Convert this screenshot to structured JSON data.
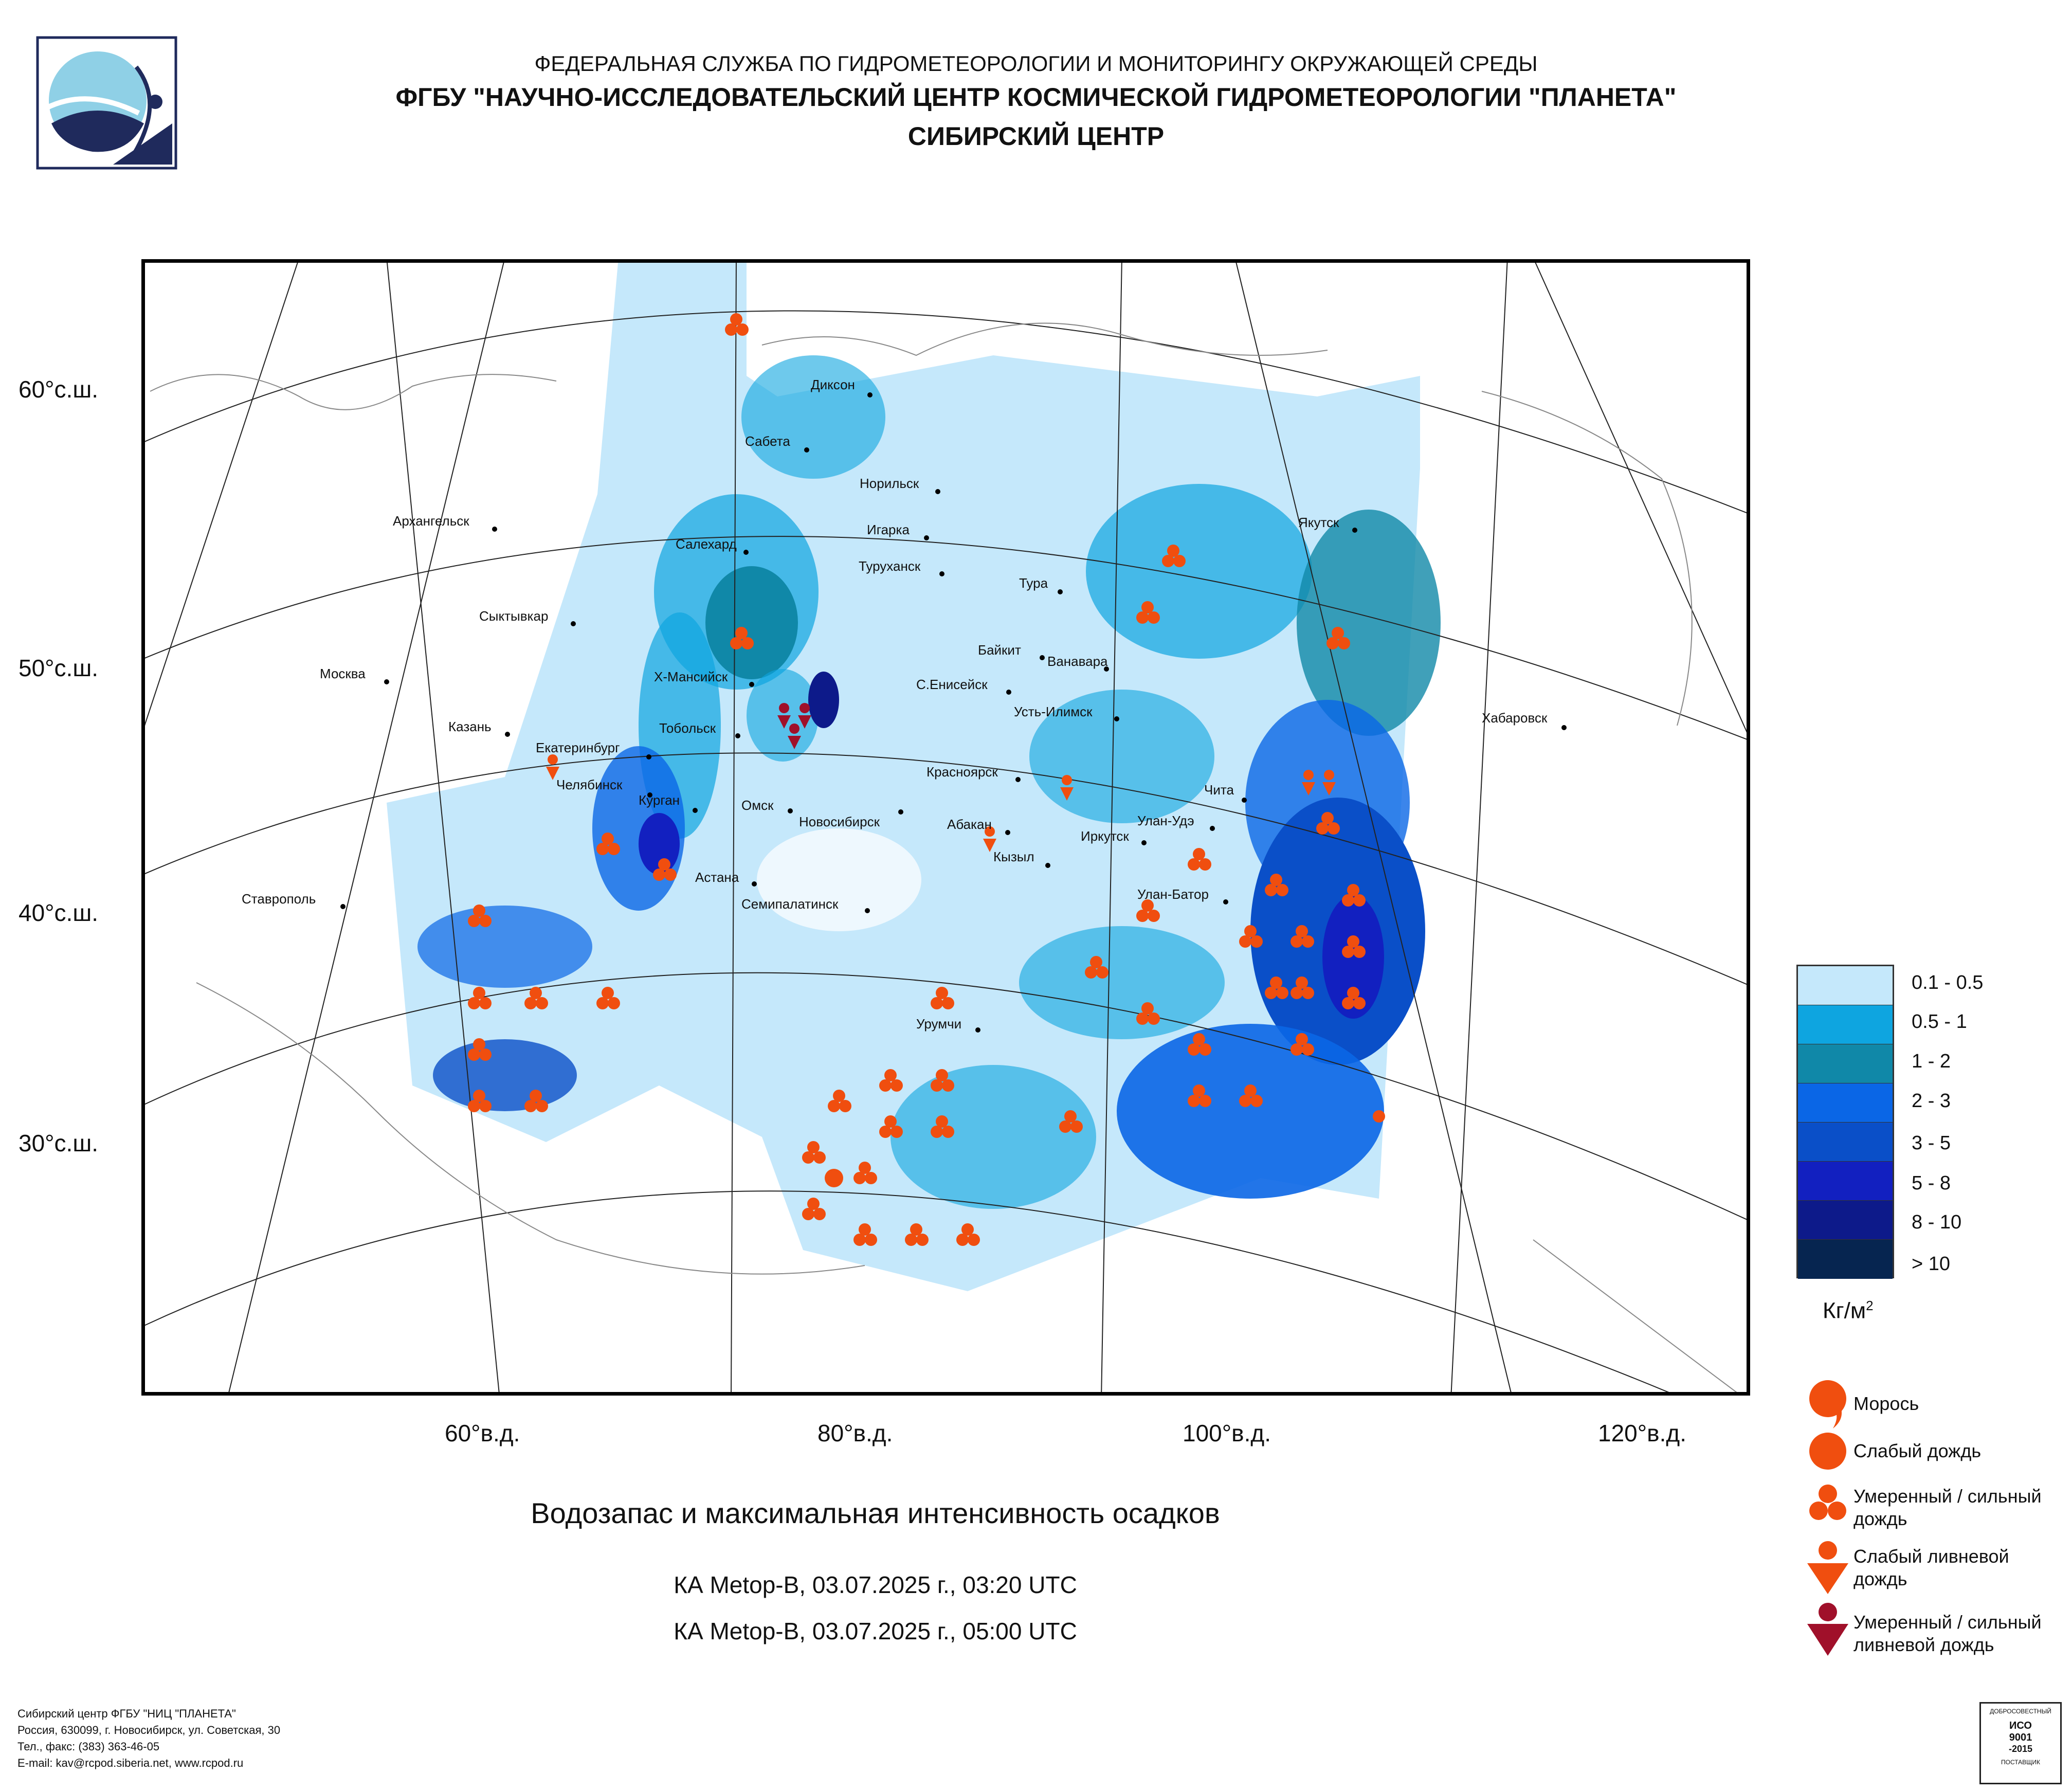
{
  "header": {
    "line1": "ФЕДЕРАЛЬНАЯ СЛУЖБА ПО ГИДРОМЕТЕОРОЛОГИИ И МОНИТОРИНГУ ОКРУЖАЮЩЕЙ СРЕДЫ",
    "line2": "ФГБУ \"НАУЧНО-ИССЛЕДОВАТЕЛЬСКИЙ ЦЕНТР КОСМИЧЕСКОЙ ГИДРОМЕТЕОРОЛОГИИ \"ПЛАНЕТА\"",
    "line3": "СИБИРСКИЙ ЦЕНТР"
  },
  "lat_labels": [
    "60°с.ш.",
    "50°с.ш.",
    "40°с.ш.",
    "30°с.ш."
  ],
  "lon_labels": [
    "60°в.д.",
    "80°в.д.",
    "100°в.д.",
    "120°в.д."
  ],
  "cities": [
    "Диксон",
    "Сабета",
    "Норильск",
    "Игарка",
    "Туруханск",
    "Салехард",
    "Архангельск",
    "Якутск",
    "Тура",
    "Сыктывкар",
    "Байкит",
    "Ванавара",
    "Москва",
    "Х-Мансийск",
    "С.Енисейск",
    "Усть-Илимск",
    "Хабаровск",
    "Казань",
    "Тобольск",
    "Екатеринбург",
    "Красноярск",
    "Чита",
    "Челябинск",
    "Курган",
    "Омск",
    "Новосибирск",
    "Абакан",
    "Улан-Удэ",
    "Иркутск",
    "Кызыл",
    "Астана",
    "Ставрополь",
    "Улан-Батор",
    "Семипалатинск",
    "Урумчи"
  ],
  "legend": {
    "colors": [
      "#c5e8fb",
      "#0ea5e0",
      "#1088a8",
      "#0a66e6",
      "#0a4fc8",
      "#1220c0",
      "#0d1a8a",
      "#062550"
    ],
    "labels": [
      "0.1 - 0.5",
      "0.5 - 1",
      "1 - 2",
      "2 - 3",
      "3 - 5",
      "5 - 8",
      "8 - 10",
      "> 10"
    ],
    "units": "Кг/м",
    "units_sup": "2"
  },
  "symbols": {
    "drizzle": "Морось",
    "light_rain": "Слабый дождь",
    "moderate_rain_1": "Умеренный / сильный",
    "moderate_rain_2": "дождь",
    "light_shower_1": "Слабый ливневой",
    "light_shower_2": "дождь",
    "heavy_shower_1": "Умеренный / сильный",
    "heavy_shower_2": "ливневой дождь",
    "orange": "#f04e0f",
    "dark_red": "#a0102a"
  },
  "titles": {
    "main": "Водозапас и максимальная интенсивность осадков",
    "sub1": "КА Metop-B, 03.07.2025 г., 03:20 UTC",
    "sub2": "КА Metop-B, 03.07.2025 г., 05:00 UTC"
  },
  "footer": [
    "Сибирский центр ФГБУ \"НИЦ \"ПЛАНЕТА\"",
    "Россия, 630099, г. Новосибирск, ул. Советская, 30",
    "Тел., факс: (383) 363-46-05",
    "E-mail: kav@rcpod.siberia.net, www.rcpod.ru"
  ],
  "cert": {
    "top": "ДОБРОСОВЕСТНЫЙ",
    "mid1": "ИСО",
    "mid2": "9001",
    "mid3": "-2015",
    "bottom": "ПОСТАВЩИК"
  }
}
